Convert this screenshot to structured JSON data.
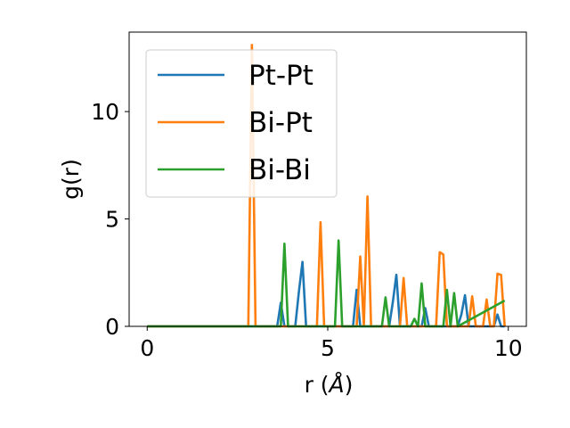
{
  "chart_data": {
    "type": "line",
    "xlabel_main": "r (",
    "xlabel_unit": "Å",
    "xlabel_end": ")",
    "ylabel": "g(r)",
    "xlim": [
      -0.5,
      10.5
    ],
    "ylim": [
      0,
      13.7
    ],
    "xticks": [
      0,
      5,
      10
    ],
    "yticks": [
      0,
      5,
      10
    ],
    "grid": false,
    "legend_position": "top-left",
    "series": [
      {
        "name": "Pt-Pt",
        "color": "#1f77b4",
        "x": [
          0,
          3.6,
          3.7,
          3.8,
          4.1,
          4.2,
          4.3,
          4.4,
          5.7,
          5.8,
          5.9,
          6.7,
          6.8,
          6.9,
          7.0,
          7.6,
          7.7,
          7.8,
          8.6,
          8.7,
          8.8,
          8.9,
          9.6,
          9.7,
          9.8,
          9.9
        ],
        "y": [
          0,
          0,
          1.1,
          0,
          0,
          1.6,
          3.0,
          0,
          0,
          1.7,
          0,
          0,
          1.1,
          2.4,
          0,
          0,
          0.85,
          0,
          0,
          0.55,
          1.45,
          0,
          0,
          0.55,
          0,
          0
        ]
      },
      {
        "name": "Bi-Pt",
        "color": "#ff7f0e",
        "x": [
          0,
          2.8,
          2.9,
          3.0,
          4.7,
          4.8,
          4.9,
          5.8,
          5.9,
          6.0,
          6.1,
          6.2,
          7.0,
          7.1,
          7.2,
          8.0,
          8.1,
          8.2,
          8.3,
          8.9,
          9.0,
          9.1,
          9.3,
          9.4,
          9.5,
          9.6,
          9.7,
          9.8,
          9.9
        ],
        "y": [
          0,
          0,
          13.1,
          0,
          0,
          4.85,
          0,
          0,
          3.25,
          0,
          6.05,
          0,
          0,
          2.25,
          0,
          0,
          3.45,
          3.35,
          0,
          0,
          1.4,
          0,
          0,
          1.25,
          0,
          0,
          2.45,
          2.4,
          0
        ]
      },
      {
        "name": "Bi-Bi",
        "color": "#2ca02c",
        "x": [
          0,
          3.7,
          3.8,
          3.9,
          5.2,
          5.3,
          5.4,
          6.5,
          6.6,
          6.7,
          7.3,
          7.4,
          7.5,
          7.6,
          7.7,
          7.9,
          8.0,
          8.1,
          8.2,
          8.3,
          8.4,
          8.5,
          8.6,
          9.9
        ],
        "y": [
          0,
          0,
          3.85,
          0,
          0,
          4.0,
          0,
          0,
          1.35,
          0,
          0,
          0.35,
          0,
          2.0,
          0,
          0,
          0,
          0,
          0,
          1.7,
          0,
          1.55,
          0,
          1.2
        ]
      }
    ]
  }
}
